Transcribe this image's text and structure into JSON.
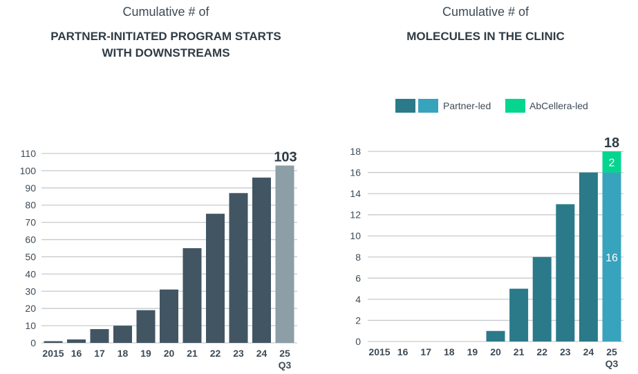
{
  "chart_data": [
    {
      "type": "bar",
      "subtitle": "Cumulative # of",
      "title": "PARTNER-INITIATED PROGRAM STARTS WITH DOWNSTREAMS",
      "title_lines": [
        "PARTNER-INITIATED PROGRAM STARTS",
        "WITH DOWNSTREAMS"
      ],
      "categories": [
        "2015",
        "16",
        "17",
        "18",
        "19",
        "20",
        "21",
        "22",
        "23",
        "24",
        "25"
      ],
      "category_sublabels": {
        "25": "Q3"
      },
      "values": [
        1,
        2,
        8,
        10,
        19,
        31,
        55,
        75,
        87,
        96,
        103
      ],
      "highlight_last": true,
      "total_label": "103",
      "ylim": [
        0,
        110
      ],
      "yticks": [
        0,
        10,
        20,
        30,
        40,
        50,
        60,
        70,
        80,
        90,
        100,
        110
      ],
      "grid": true,
      "colors": {
        "bar": "#425563",
        "highlight": "#8c9ea6"
      }
    },
    {
      "type": "bar",
      "stacked": true,
      "subtitle": "Cumulative # of",
      "title": "MOLECULES IN THE CLINIC",
      "categories": [
        "2015",
        "16",
        "17",
        "18",
        "19",
        "20",
        "21",
        "22",
        "23",
        "24",
        "25"
      ],
      "category_sublabels": {
        "25": "Q3"
      },
      "series": [
        {
          "name": "Partner-led",
          "values": [
            0,
            0,
            0,
            0,
            0,
            1,
            5,
            8,
            13,
            16,
            16
          ]
        },
        {
          "name": "AbCellera-led",
          "values": [
            0,
            0,
            0,
            0,
            0,
            0,
            0,
            0,
            0,
            0,
            2
          ]
        }
      ],
      "segment_labels_last": [
        "16",
        "2"
      ],
      "total_label": "18",
      "ylim": [
        0,
        18
      ],
      "yticks": [
        0,
        2,
        4,
        6,
        8,
        10,
        12,
        14,
        16,
        18
      ],
      "grid": true,
      "legend": {
        "position": "top",
        "items": [
          "Partner-led",
          "AbCellera-led"
        ]
      },
      "colors": {
        "partner": "#2a7a8a",
        "partner_highlight": "#38a3bd",
        "abcellera": "#05d68f"
      }
    }
  ]
}
